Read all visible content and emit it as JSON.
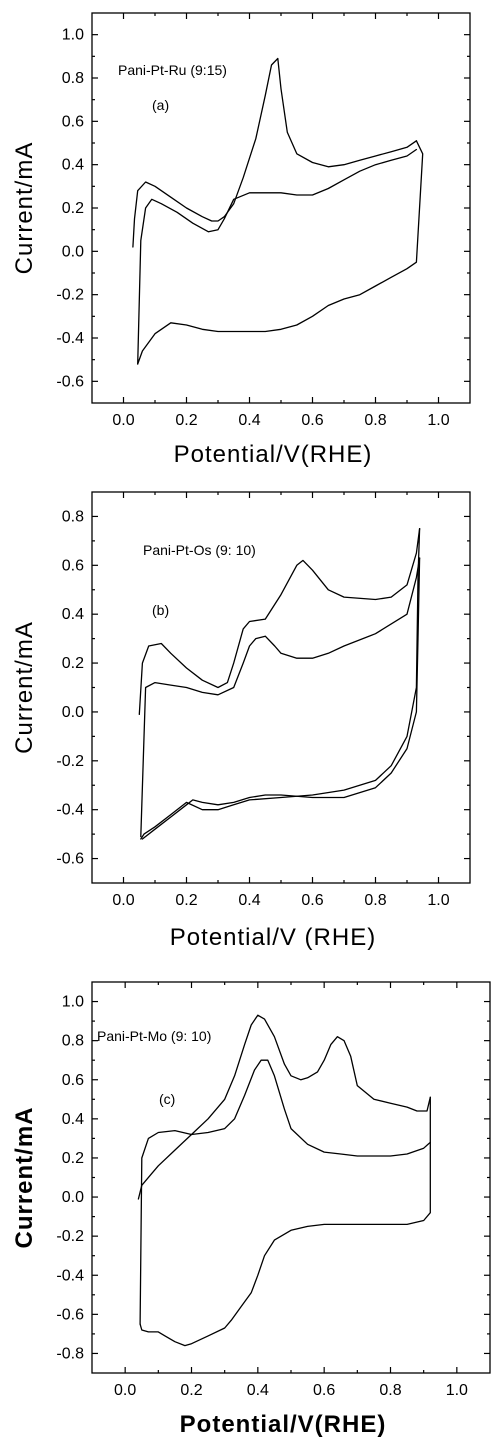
{
  "chart_data": [
    {
      "type": "line",
      "panel_label": "(a)",
      "annotation": "Pani-Pt-Ru (9:15)",
      "xlabel": "Potential/V(RHE)",
      "ylabel": "Current/mA",
      "xlim": [
        -0.1,
        1.1
      ],
      "ylim": [
        -0.7,
        1.1
      ],
      "xticks": [
        "0.0",
        "0.2",
        "0.4",
        "0.6",
        "0.8",
        "1.0"
      ],
      "yticks": [
        "1.0",
        "0.8",
        "0.6",
        "0.4",
        "0.2",
        "0.0",
        "-0.2",
        "-0.4",
        "-0.6"
      ],
      "bold_labels": false,
      "series": [
        {
          "x": [
            0.03,
            0.035,
            0.045,
            0.07,
            0.1,
            0.15,
            0.2,
            0.25,
            0.28,
            0.3,
            0.32,
            0.35,
            0.38,
            0.42,
            0.45,
            0.47,
            0.49,
            0.5,
            0.52,
            0.55,
            0.6,
            0.65,
            0.7,
            0.75,
            0.8,
            0.85,
            0.9,
            0.93
          ],
          "y": [
            0.02,
            0.15,
            0.28,
            0.32,
            0.3,
            0.25,
            0.2,
            0.16,
            0.14,
            0.14,
            0.16,
            0.22,
            0.34,
            0.52,
            0.72,
            0.86,
            0.89,
            0.75,
            0.55,
            0.45,
            0.41,
            0.39,
            0.4,
            0.42,
            0.44,
            0.46,
            0.48,
            0.51
          ]
        },
        {
          "x": [
            0.93,
            0.95,
            0.93,
            0.9,
            0.85,
            0.8,
            0.75,
            0.7,
            0.65,
            0.6,
            0.55,
            0.5,
            0.45,
            0.4,
            0.35,
            0.3,
            0.25,
            0.2,
            0.15,
            0.1,
            0.06,
            0.045
          ],
          "y": [
            0.51,
            0.45,
            -0.05,
            -0.08,
            -0.12,
            -0.16,
            -0.2,
            -0.22,
            -0.25,
            -0.3,
            -0.34,
            -0.36,
            -0.37,
            -0.37,
            -0.37,
            -0.37,
            -0.36,
            -0.34,
            -0.33,
            -0.38,
            -0.46,
            -0.52
          ]
        },
        {
          "x": [
            0.045,
            0.055,
            0.07,
            0.09,
            0.12,
            0.17,
            0.22,
            0.27,
            0.3,
            0.32,
            0.35,
            0.4,
            0.45,
            0.5,
            0.55,
            0.6,
            0.65,
            0.7,
            0.75,
            0.8,
            0.85,
            0.9,
            0.93
          ],
          "y": [
            -0.52,
            0.05,
            0.2,
            0.24,
            0.22,
            0.18,
            0.13,
            0.09,
            0.1,
            0.15,
            0.24,
            0.27,
            0.27,
            0.27,
            0.26,
            0.26,
            0.29,
            0.33,
            0.37,
            0.4,
            0.42,
            0.44,
            0.47
          ]
        }
      ]
    },
    {
      "type": "line",
      "panel_label": "(b)",
      "annotation": "Pani-Pt-Os (9: 10)",
      "xlabel": "Potential/V (RHE)",
      "ylabel": "Current/mA",
      "xlim": [
        -0.1,
        1.1
      ],
      "ylim": [
        -0.7,
        0.9
      ],
      "xticks": [
        "0.0",
        "0.2",
        "0.4",
        "0.6",
        "0.8",
        "1.0"
      ],
      "yticks": [
        "0.8",
        "0.6",
        "0.4",
        "0.2",
        "0.0",
        "-0.2",
        "-0.4",
        "-0.6"
      ],
      "bold_labels": false,
      "series": [
        {
          "x": [
            0.05,
            0.06,
            0.08,
            0.12,
            0.15,
            0.2,
            0.25,
            0.3,
            0.33,
            0.35,
            0.38,
            0.4,
            0.45,
            0.5,
            0.55,
            0.57,
            0.6,
            0.65,
            0.7,
            0.8,
            0.85,
            0.9,
            0.93,
            0.94
          ],
          "y": [
            -0.01,
            0.2,
            0.27,
            0.28,
            0.24,
            0.18,
            0.13,
            0.1,
            0.12,
            0.2,
            0.34,
            0.37,
            0.38,
            0.48,
            0.6,
            0.62,
            0.58,
            0.5,
            0.47,
            0.46,
            0.47,
            0.52,
            0.65,
            0.75
          ]
        },
        {
          "x": [
            0.94,
            0.935,
            0.93,
            0.9,
            0.85,
            0.8,
            0.7,
            0.6,
            0.5,
            0.4,
            0.35,
            0.3,
            0.25,
            0.2,
            0.15,
            0.1,
            0.065,
            0.055
          ],
          "y": [
            0.75,
            0.55,
            0.1,
            -0.1,
            -0.22,
            -0.28,
            -0.32,
            -0.34,
            -0.35,
            -0.36,
            -0.38,
            -0.4,
            -0.4,
            -0.37,
            -0.42,
            -0.47,
            -0.5,
            -0.52
          ]
        },
        {
          "x": [
            0.055,
            0.07,
            0.1,
            0.15,
            0.2,
            0.25,
            0.3,
            0.35,
            0.38,
            0.4,
            0.42,
            0.45,
            0.48,
            0.5,
            0.55,
            0.6,
            0.65,
            0.7,
            0.8,
            0.9,
            0.93,
            0.94
          ],
          "y": [
            -0.51,
            0.1,
            0.12,
            0.11,
            0.1,
            0.08,
            0.07,
            0.1,
            0.2,
            0.27,
            0.3,
            0.31,
            0.27,
            0.24,
            0.22,
            0.22,
            0.24,
            0.27,
            0.32,
            0.4,
            0.55,
            0.63
          ]
        },
        {
          "x": [
            0.94,
            0.935,
            0.93,
            0.9,
            0.85,
            0.8,
            0.7,
            0.6,
            0.5,
            0.45,
            0.4,
            0.35,
            0.3,
            0.25,
            0.22,
            0.2,
            0.15,
            0.1,
            0.06
          ],
          "y": [
            0.63,
            0.3,
            0.0,
            -0.15,
            -0.25,
            -0.31,
            -0.35,
            -0.35,
            -0.34,
            -0.34,
            -0.35,
            -0.37,
            -0.38,
            -0.37,
            -0.36,
            -0.38,
            -0.43,
            -0.48,
            -0.52
          ]
        }
      ]
    },
    {
      "type": "line",
      "panel_label": "(c)",
      "annotation": "Pani-Pt-Mo (9: 10)",
      "xlabel": "Potential/V(RHE)",
      "ylabel": "Current/mA",
      "xlim": [
        -0.1,
        1.1
      ],
      "ylim": [
        -0.9,
        1.1
      ],
      "xticks": [
        "0.0",
        "0.2",
        "0.4",
        "0.6",
        "0.8",
        "1.0"
      ],
      "yticks": [
        "1.0",
        "0.8",
        "0.6",
        "0.4",
        "0.2",
        "0.0",
        "-0.2",
        "-0.4",
        "-0.6",
        "-0.8"
      ],
      "bold_labels": true,
      "series": [
        {
          "x": [
            0.04,
            0.05,
            0.08,
            0.1,
            0.15,
            0.2,
            0.25,
            0.3,
            0.33,
            0.36,
            0.38,
            0.4,
            0.42,
            0.45,
            0.48,
            0.5,
            0.53,
            0.55,
            0.58,
            0.6,
            0.62,
            0.64,
            0.66,
            0.68,
            0.7,
            0.75,
            0.8,
            0.85,
            0.88,
            0.91,
            0.92
          ],
          "y": [
            -0.01,
            0.06,
            0.12,
            0.16,
            0.24,
            0.32,
            0.4,
            0.5,
            0.62,
            0.78,
            0.88,
            0.93,
            0.91,
            0.82,
            0.68,
            0.62,
            0.6,
            0.61,
            0.64,
            0.7,
            0.78,
            0.82,
            0.8,
            0.72,
            0.57,
            0.5,
            0.48,
            0.46,
            0.44,
            0.44,
            0.51
          ]
        },
        {
          "x": [
            0.92,
            0.92,
            0.9,
            0.85,
            0.8,
            0.7,
            0.6,
            0.55,
            0.5,
            0.45,
            0.42,
            0.4,
            0.38,
            0.35,
            0.32,
            0.3,
            0.25,
            0.2,
            0.18,
            0.15,
            0.12,
            0.1,
            0.07,
            0.05,
            0.045
          ],
          "y": [
            0.51,
            -0.08,
            -0.12,
            -0.14,
            -0.14,
            -0.14,
            -0.14,
            -0.15,
            -0.17,
            -0.22,
            -0.3,
            -0.4,
            -0.49,
            -0.56,
            -0.63,
            -0.67,
            -0.71,
            -0.75,
            -0.76,
            -0.74,
            -0.71,
            -0.69,
            -0.69,
            -0.68,
            -0.65
          ]
        },
        {
          "x": [
            0.045,
            0.05,
            0.07,
            0.1,
            0.15,
            0.2,
            0.25,
            0.3,
            0.33,
            0.36,
            0.39,
            0.41,
            0.43,
            0.45,
            0.48,
            0.5,
            0.55,
            0.6,
            0.65,
            0.7,
            0.75,
            0.8,
            0.85,
            0.9,
            0.92
          ],
          "y": [
            -0.65,
            0.2,
            0.3,
            0.33,
            0.34,
            0.32,
            0.33,
            0.35,
            0.4,
            0.52,
            0.65,
            0.7,
            0.7,
            0.62,
            0.45,
            0.35,
            0.27,
            0.23,
            0.22,
            0.21,
            0.21,
            0.21,
            0.22,
            0.25,
            0.28
          ]
        }
      ]
    }
  ]
}
